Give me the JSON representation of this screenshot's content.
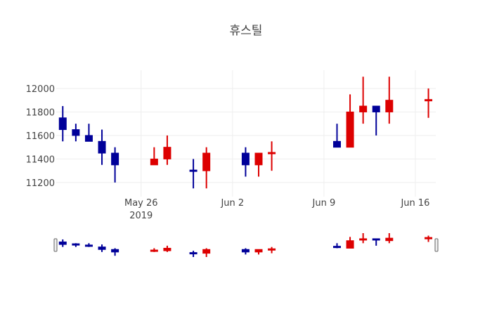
{
  "chart_data": {
    "type": "candlestick",
    "title": "휴스틸",
    "xlabel": "",
    "ylabel": "",
    "increasing_color": "#dd0000",
    "decreasing_color": "#000099",
    "ylim": [
      11080,
      12155
    ],
    "xlim": [
      "2019-05-19T12:00",
      "2019-06-17T13:30"
    ],
    "grid": true,
    "y_ticks": [
      11200,
      11400,
      11600,
      11800,
      12000
    ],
    "x_ticks": [
      {
        "date": "2019-05-26",
        "label": "May 26",
        "sublabel": "2019"
      },
      {
        "date": "2019-06-02",
        "label": "Jun 2",
        "sublabel": ""
      },
      {
        "date": "2019-06-09",
        "label": "Jun 9",
        "sublabel": ""
      },
      {
        "date": "2019-06-16",
        "label": "Jun 16",
        "sublabel": ""
      }
    ],
    "rangeslider": true,
    "data": [
      {
        "date": "2019-05-20",
        "open": 11750,
        "high": 11850,
        "low": 11550,
        "close": 11650
      },
      {
        "date": "2019-05-21",
        "open": 11650,
        "high": 11700,
        "low": 11550,
        "close": 11600
      },
      {
        "date": "2019-05-22",
        "open": 11600,
        "high": 11700,
        "low": 11550,
        "close": 11550
      },
      {
        "date": "2019-05-23",
        "open": 11550,
        "high": 11650,
        "low": 11350,
        "close": 11450
      },
      {
        "date": "2019-05-24",
        "open": 11450,
        "high": 11500,
        "low": 11200,
        "close": 11350
      },
      {
        "date": "2019-05-27",
        "open": 11350,
        "high": 11500,
        "low": 11350,
        "close": 11400
      },
      {
        "date": "2019-05-28",
        "open": 11400,
        "high": 11600,
        "low": 11350,
        "close": 11500
      },
      {
        "date": "2019-05-30",
        "open": 11300,
        "high": 11400,
        "low": 11150,
        "close": 11300,
        "direction": "decreasing"
      },
      {
        "date": "2019-05-31",
        "open": 11300,
        "high": 11500,
        "low": 11150,
        "close": 11450
      },
      {
        "date": "2019-06-03",
        "open": 11450,
        "high": 11500,
        "low": 11250,
        "close": 11350
      },
      {
        "date": "2019-06-04",
        "open": 11350,
        "high": 11450,
        "low": 11250,
        "close": 11450
      },
      {
        "date": "2019-06-05",
        "open": 11450,
        "high": 11550,
        "low": 11300,
        "close": 11450,
        "direction": "increasing"
      },
      {
        "date": "2019-06-10",
        "open": 11550,
        "high": 11700,
        "low": 11500,
        "close": 11500
      },
      {
        "date": "2019-06-11",
        "open": 11500,
        "high": 11950,
        "low": 11500,
        "close": 11800
      },
      {
        "date": "2019-06-12",
        "open": 11800,
        "high": 12100,
        "low": 11700,
        "close": 11850
      },
      {
        "date": "2019-06-13",
        "open": 11850,
        "high": 11850,
        "low": 11600,
        "close": 11800
      },
      {
        "date": "2019-06-14",
        "open": 11800,
        "high": 12100,
        "low": 11700,
        "close": 11900
      },
      {
        "date": "2019-06-17",
        "open": 11900,
        "high": 12000,
        "low": 11750,
        "close": 11900,
        "direction": "increasing"
      }
    ]
  }
}
